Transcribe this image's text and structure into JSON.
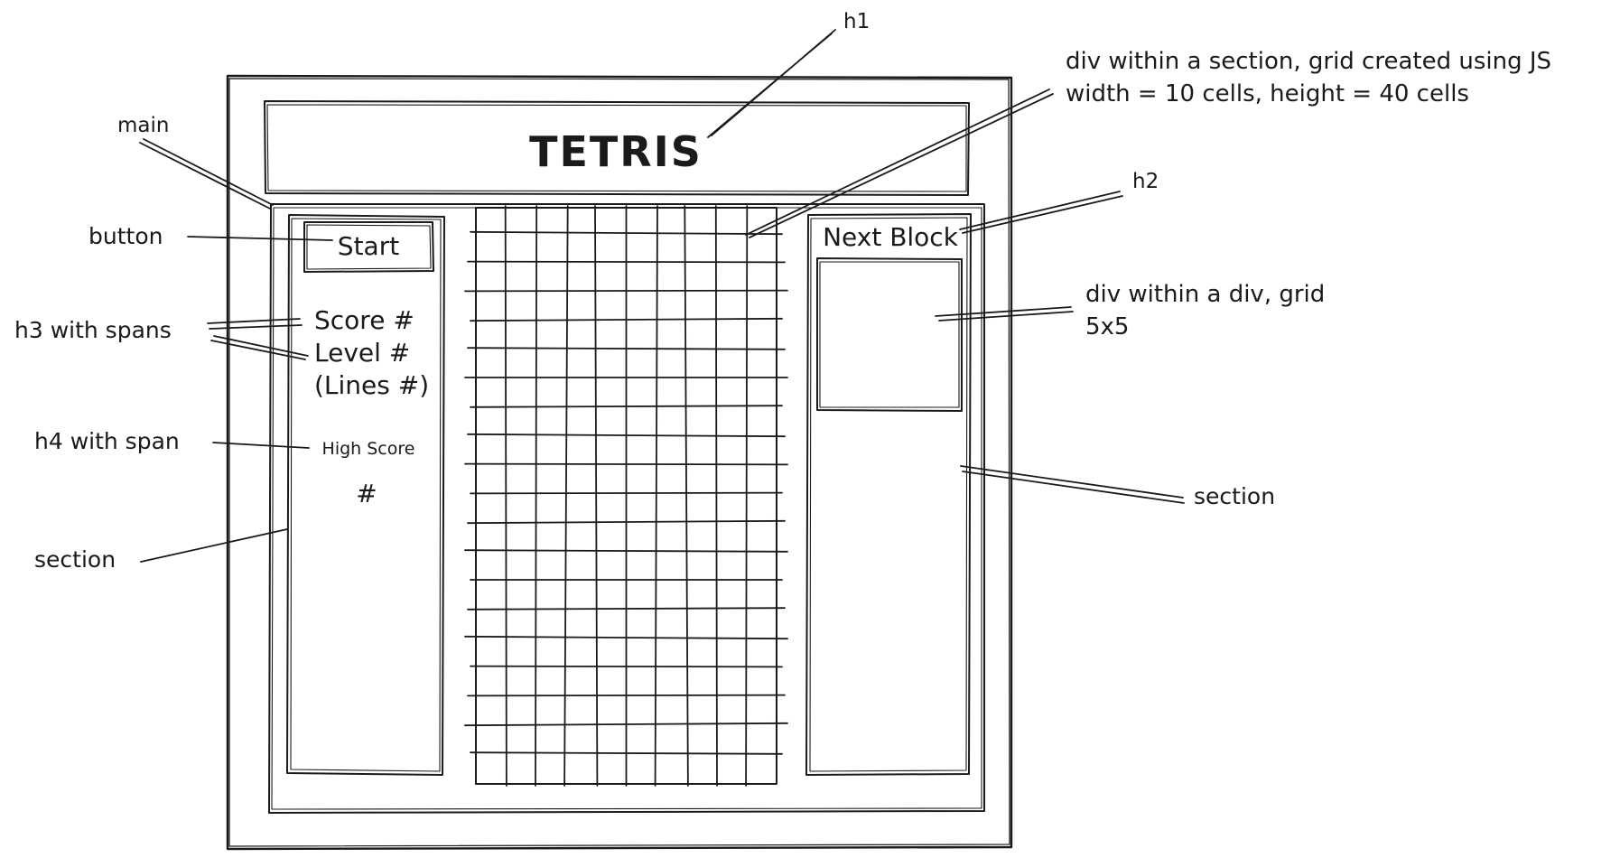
{
  "wireframe": {
    "title": "TETRIS",
    "start_button": "Start",
    "score_line": "Score #",
    "level_line": "Level #",
    "lines_line": "(Lines #)",
    "high_score_label": "High Score",
    "high_score_value": "#",
    "next_block_heading": "Next Block",
    "board_columns": 10
  },
  "annotations": {
    "h1": "h1",
    "main": "main",
    "button": "button",
    "h3": "h3 with spans",
    "h4": "h4 with span",
    "section_left": "section",
    "board_line1": "div within a section, grid created using JS",
    "board_line2": "width = 10 cells, height = 40 cells",
    "h2": "h2",
    "preview_line1": "div within a div, grid",
    "preview_line2": "5x5",
    "section_right": "section"
  }
}
